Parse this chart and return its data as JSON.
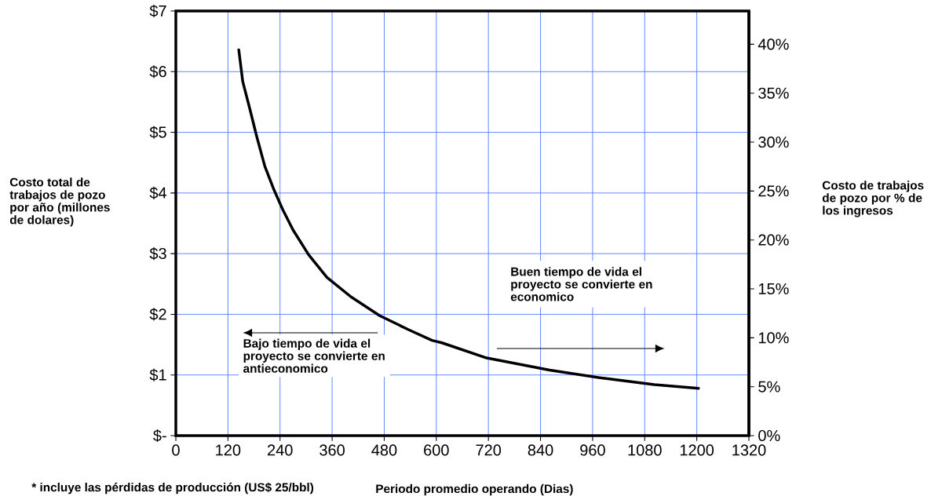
{
  "chart_data": {
    "type": "line",
    "xlabel": "Periodo promedio operando (Dias)",
    "ylabel": "Costo total de trabajos de pozo por año (millones de dolares)",
    "y2label": "Costo de trabajos de pozo por % de los ingresos",
    "annotations": [
      "* incluye las pérdidas de producción (US$ 25/bbl)",
      "Bajo tiempo de vida el proyecto se convierte en antieconomico",
      "Buen tiempo de vida el proyecto se convierte en economico"
    ],
    "x": [
      145,
      154,
      171,
      186,
      205,
      225,
      246,
      270,
      306,
      348,
      403,
      469,
      535,
      590,
      613,
      716,
      861,
      981,
      1102,
      1204
    ],
    "values": [
      6.36,
      5.84,
      5.37,
      4.94,
      4.44,
      4.07,
      3.73,
      3.39,
      2.98,
      2.61,
      2.29,
      1.98,
      1.75,
      1.57,
      1.53,
      1.28,
      1.08,
      0.95,
      0.84,
      0.78
    ],
    "color": "#000000",
    "marker": "none",
    "line_style": "solid",
    "grid": true,
    "xlim": [
      0,
      1320
    ],
    "xticks": [
      0,
      120,
      240,
      360,
      480,
      600,
      720,
      840,
      960,
      1080,
      1200,
      1320
    ],
    "ylim": [
      0,
      7
    ],
    "yticks": [
      {
        "value": 0,
        "label": "$-"
      },
      {
        "value": 1,
        "label": "$1"
      },
      {
        "value": 2,
        "label": "$2"
      },
      {
        "value": 3,
        "label": "$3"
      },
      {
        "value": 4,
        "label": "$4"
      },
      {
        "value": 5,
        "label": "$5"
      },
      {
        "value": 6,
        "label": "$6"
      },
      {
        "value": 7,
        "label": "$7"
      }
    ],
    "y2lim": [
      0,
      43.4
    ],
    "y2ticks": [
      {
        "value": 0,
        "label": "0%"
      },
      {
        "value": 5,
        "label": "5%"
      },
      {
        "value": 10,
        "label": "10%"
      },
      {
        "value": 15,
        "label": "15%"
      },
      {
        "value": 20,
        "label": "20%"
      },
      {
        "value": 25,
        "label": "25%"
      },
      {
        "value": 30,
        "label": "30%"
      },
      {
        "value": 35,
        "label": "35%"
      },
      {
        "value": 40,
        "label": "40%"
      }
    ]
  }
}
